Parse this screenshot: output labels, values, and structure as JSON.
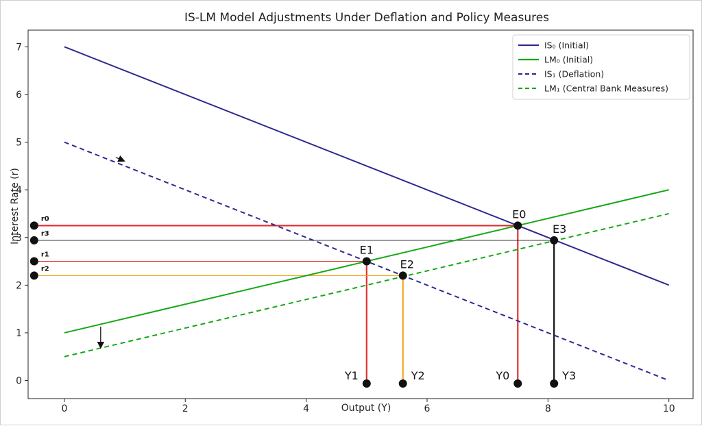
{
  "chart_data": {
    "type": "line",
    "title": "IS-LM Model Adjustments Under Deflation and Policy Measures",
    "xlabel": "Output (Y)",
    "ylabel": "Interest Rate (r)",
    "xlim": [
      -0.6,
      10.4
    ],
    "ylim": [
      -0.38,
      7.35
    ],
    "xticks": [
      0,
      2,
      4,
      6,
      8,
      10
    ],
    "yticks": [
      0,
      1,
      2,
      3,
      4,
      5,
      6,
      7
    ],
    "grid": false,
    "legend_position": "top-right",
    "series": [
      {
        "name": "IS₀ (Initial)",
        "color": "#2e2a8f",
        "dash": false,
        "x": [
          0,
          10
        ],
        "y": [
          7,
          2
        ]
      },
      {
        "name": "LM₀ (Initial)",
        "color": "#18a818",
        "dash": false,
        "x": [
          0,
          10
        ],
        "y": [
          1,
          4
        ]
      },
      {
        "name": "IS₁ (Deflation)",
        "color": "#2e2a8f",
        "dash": true,
        "x": [
          0,
          10
        ],
        "y": [
          5,
          0
        ]
      },
      {
        "name": "LM₁ (Central Bank Measures)",
        "color": "#18a818",
        "dash": true,
        "x": [
          0,
          10
        ],
        "y": [
          0.5,
          3.5
        ]
      }
    ],
    "equilibria": [
      {
        "label": "E0",
        "x": 7.5,
        "y": 3.25,
        "ylabel": "Y0",
        "rlabel": "r0",
        "color": "#e03030"
      },
      {
        "label": "E1",
        "x": 5.0,
        "y": 2.5,
        "ylabel": "Y1",
        "rlabel": "r1",
        "color": "#e03030"
      },
      {
        "label": "E2",
        "x": 5.6,
        "y": 2.2,
        "ylabel": "Y2",
        "rlabel": "r2",
        "color": "#f5a623"
      },
      {
        "label": "E3",
        "x": 8.1,
        "y": 2.94,
        "ylabel": "Y3",
        "rlabel": "r3",
        "color": "#111111"
      }
    ],
    "shift_arrows": [
      {
        "from": [
          0.85,
          4.68
        ],
        "to": [
          0.98,
          4.61
        ]
      },
      {
        "from": [
          0.6,
          1.13
        ],
        "to": [
          0.6,
          0.7
        ]
      }
    ]
  }
}
